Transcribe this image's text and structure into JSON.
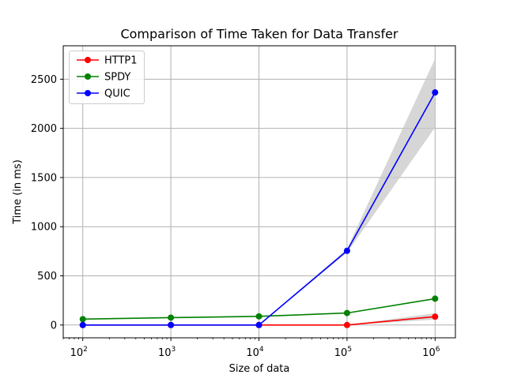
{
  "chart_data": {
    "type": "line",
    "title": "Comparison of Time Taken for Data Transfer",
    "xlabel": "Size of data",
    "ylabel": "Time (in ms)",
    "xscale": "log",
    "x": [
      100,
      1000,
      10000,
      100000,
      1000000
    ],
    "x_tick_base": "10",
    "x_tick_exponents": [
      "2",
      "3",
      "4",
      "5",
      "6"
    ],
    "xlim": [
      60,
      1700000
    ],
    "ylim": [
      -130,
      2840
    ],
    "y_ticks": [
      0,
      500,
      1000,
      1500,
      2000,
      2500
    ],
    "grid": true,
    "legend_position": "top-left",
    "series": [
      {
        "name": "HTTP1",
        "color": "#ff0000",
        "values": [
          0,
          0,
          0,
          0,
          85
        ],
        "band_low": [
          0,
          0,
          0,
          0,
          55
        ],
        "band_high": [
          0,
          0,
          0,
          0,
          120
        ]
      },
      {
        "name": "SPDY",
        "color": "#008000",
        "values": [
          60,
          75,
          88,
          122,
          268
        ],
        "band_low": [
          60,
          75,
          88,
          122,
          268
        ],
        "band_high": [
          60,
          75,
          88,
          122,
          268
        ]
      },
      {
        "name": "QUIC",
        "color": "#0000ff",
        "values": [
          0,
          0,
          0,
          755,
          2365
        ],
        "band_low": [
          0,
          0,
          0,
          735,
          2010
        ],
        "band_high": [
          0,
          0,
          0,
          775,
          2710
        ]
      }
    ],
    "band_color": "#c8c8c8"
  }
}
